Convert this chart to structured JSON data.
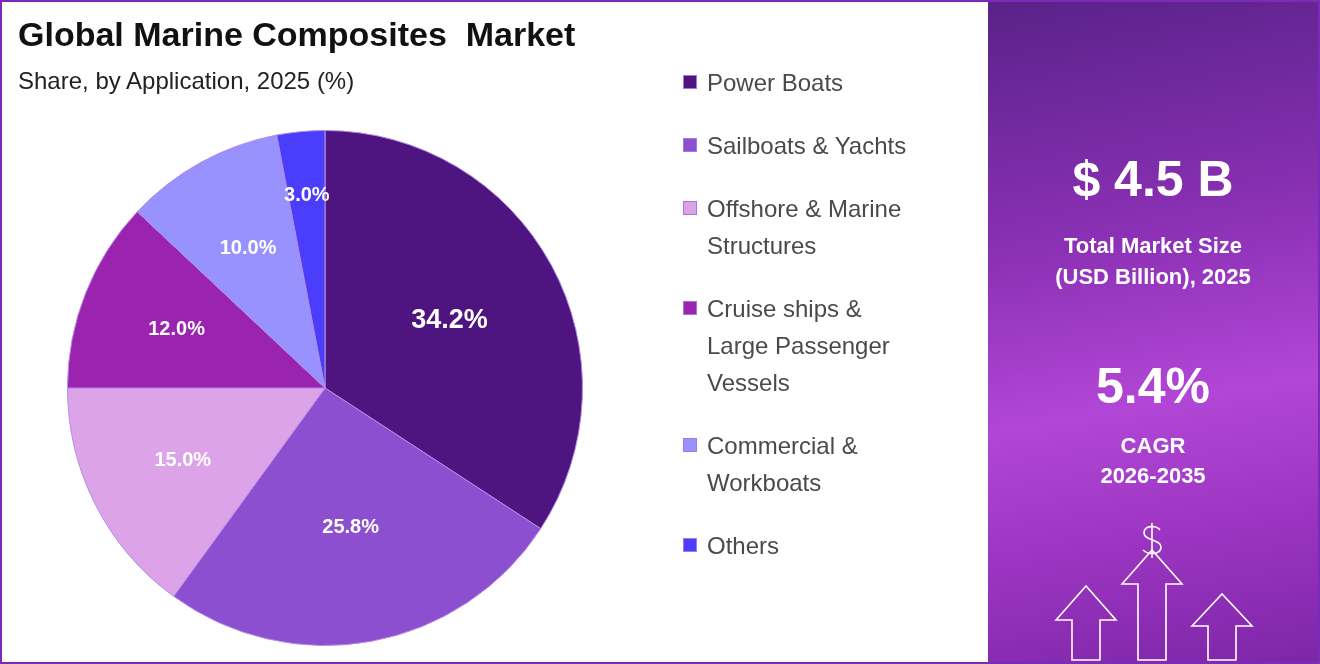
{
  "chart_data": [
    {
      "type": "pie",
      "title": "Global Marine Composites  Market",
      "subtitle": "Share, by Application, 2025 (%)",
      "categories": [
        "Power Boats",
        "Sailboats & Yachts",
        "Offshore & Marine Structures",
        "Cruise ships & Large Passenger Vessels",
        "Commercial & Workboats",
        "Others"
      ],
      "values": [
        34.2,
        25.8,
        15.0,
        12.0,
        10.0,
        3.0
      ],
      "colors": [
        "#4e1580",
        "#8b4fd0",
        "#dda3e8",
        "#9a24b0",
        "#9792fd",
        "#4a3dfc"
      ],
      "value_labels": [
        "34.2%",
        "25.8%",
        "15.0%",
        "12.0%",
        "10.0%",
        "3.0%"
      ],
      "legend": "right"
    },
    {
      "type": "other",
      "annotations": [
        "$ 4.5 B",
        "Total Market Size (USD Billion), 2025",
        "5.4%",
        "CAGR",
        "2026-2035"
      ]
    }
  ]
}
